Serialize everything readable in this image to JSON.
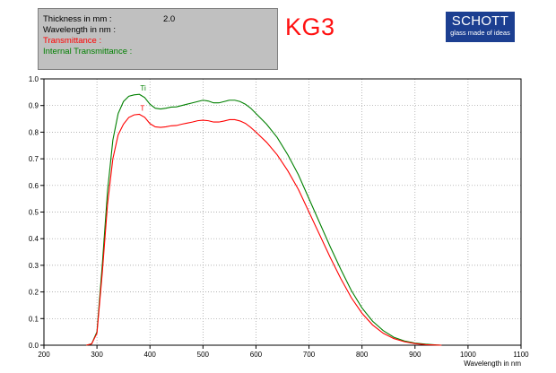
{
  "info_panel": {
    "rows": [
      {
        "label": "Thickness in mm :",
        "value": "2.0",
        "color": "#000000"
      },
      {
        "label": "Wavelength in nm :",
        "value": "",
        "color": "#000000"
      },
      {
        "label": "Transmittance :",
        "value": "",
        "color": "#ff0000"
      },
      {
        "label": "Internal Transmittance :",
        "value": "",
        "color": "#008000"
      }
    ]
  },
  "glass_name": "KG3",
  "logo": {
    "word": "SCHOTT",
    "tagline": "glass made of ideas"
  },
  "chart_data": {
    "type": "line",
    "title": "",
    "xlabel": "Wavelength in nm",
    "ylabel": "",
    "xlim": [
      200,
      1100
    ],
    "ylim": [
      0,
      1.0
    ],
    "x_ticks": [
      "200",
      "300",
      "400",
      "500",
      "600",
      "700",
      "800",
      "900",
      "1000",
      "1100"
    ],
    "y_ticks": [
      "0.0",
      "0.1",
      "0.2",
      "0.3",
      "0.4",
      "0.5",
      "0.6",
      "0.7",
      "0.8",
      "0.9",
      "1.0"
    ],
    "grid": true,
    "series": [
      {
        "name": "Ti",
        "color": "#008000",
        "points": [
          [
            280,
            0
          ],
          [
            290,
            0.005
          ],
          [
            300,
            0.05
          ],
          [
            310,
            0.3
          ],
          [
            320,
            0.58
          ],
          [
            330,
            0.77
          ],
          [
            340,
            0.87
          ],
          [
            350,
            0.915
          ],
          [
            360,
            0.935
          ],
          [
            370,
            0.94
          ],
          [
            380,
            0.942
          ],
          [
            390,
            0.93
          ],
          [
            400,
            0.905
          ],
          [
            410,
            0.89
          ],
          [
            420,
            0.887
          ],
          [
            430,
            0.89
          ],
          [
            440,
            0.894
          ],
          [
            450,
            0.895
          ],
          [
            460,
            0.9
          ],
          [
            470,
            0.905
          ],
          [
            480,
            0.91
          ],
          [
            490,
            0.915
          ],
          [
            500,
            0.92
          ],
          [
            510,
            0.917
          ],
          [
            520,
            0.91
          ],
          [
            530,
            0.91
          ],
          [
            540,
            0.915
          ],
          [
            550,
            0.92
          ],
          [
            560,
            0.92
          ],
          [
            570,
            0.915
          ],
          [
            580,
            0.905
          ],
          [
            590,
            0.89
          ],
          [
            600,
            0.87
          ],
          [
            620,
            0.83
          ],
          [
            640,
            0.78
          ],
          [
            660,
            0.715
          ],
          [
            680,
            0.64
          ],
          [
            700,
            0.55
          ],
          [
            720,
            0.46
          ],
          [
            740,
            0.37
          ],
          [
            760,
            0.285
          ],
          [
            780,
            0.205
          ],
          [
            800,
            0.14
          ],
          [
            820,
            0.09
          ],
          [
            840,
            0.055
          ],
          [
            860,
            0.03
          ],
          [
            880,
            0.016
          ],
          [
            900,
            0.008
          ],
          [
            920,
            0.004
          ],
          [
            940,
            0.001
          ],
          [
            950,
            0
          ]
        ]
      },
      {
        "name": "T",
        "color": "#ff0000",
        "points": [
          [
            280,
            0
          ],
          [
            290,
            0.005
          ],
          [
            300,
            0.045
          ],
          [
            310,
            0.27
          ],
          [
            320,
            0.53
          ],
          [
            330,
            0.7
          ],
          [
            340,
            0.79
          ],
          [
            350,
            0.83
          ],
          [
            360,
            0.855
          ],
          [
            370,
            0.865
          ],
          [
            380,
            0.867
          ],
          [
            390,
            0.856
          ],
          [
            400,
            0.832
          ],
          [
            410,
            0.82
          ],
          [
            420,
            0.818
          ],
          [
            430,
            0.82
          ],
          [
            440,
            0.824
          ],
          [
            450,
            0.825
          ],
          [
            460,
            0.83
          ],
          [
            470,
            0.834
          ],
          [
            480,
            0.838
          ],
          [
            490,
            0.843
          ],
          [
            500,
            0.845
          ],
          [
            510,
            0.843
          ],
          [
            520,
            0.838
          ],
          [
            530,
            0.838
          ],
          [
            540,
            0.842
          ],
          [
            550,
            0.847
          ],
          [
            560,
            0.847
          ],
          [
            570,
            0.842
          ],
          [
            580,
            0.833
          ],
          [
            590,
            0.818
          ],
          [
            600,
            0.8
          ],
          [
            620,
            0.762
          ],
          [
            640,
            0.715
          ],
          [
            660,
            0.655
          ],
          [
            680,
            0.585
          ],
          [
            700,
            0.5
          ],
          [
            720,
            0.415
          ],
          [
            740,
            0.33
          ],
          [
            760,
            0.25
          ],
          [
            780,
            0.178
          ],
          [
            800,
            0.12
          ],
          [
            820,
            0.076
          ],
          [
            840,
            0.045
          ],
          [
            860,
            0.025
          ],
          [
            880,
            0.013
          ],
          [
            900,
            0.006
          ],
          [
            920,
            0.002
          ],
          [
            940,
            0.0005
          ],
          [
            950,
            0
          ]
        ]
      }
    ]
  }
}
